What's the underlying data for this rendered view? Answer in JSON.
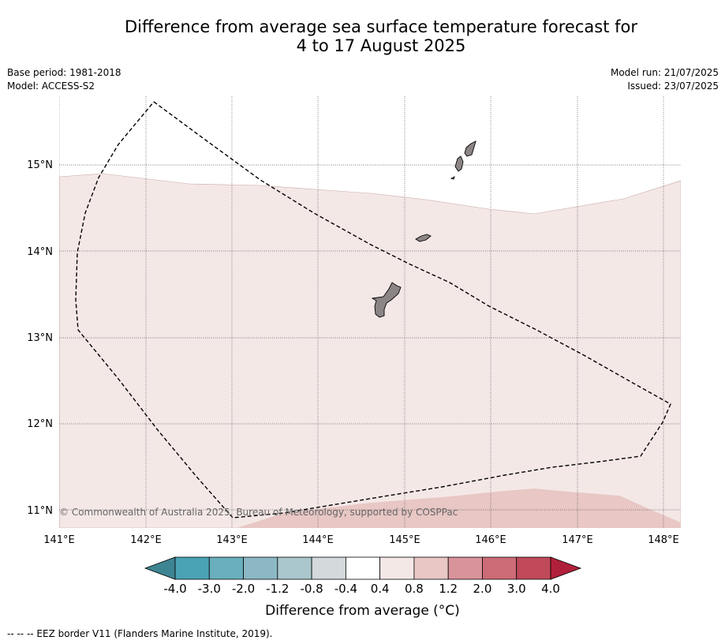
{
  "title": {
    "line1": "Difference from average sea surface temperature forecast for",
    "line2": "4 to 17 August 2025"
  },
  "info": {
    "base_period": "Base period: 1981-2018",
    "model": "Model: ACCESS-S2",
    "model_run": "Model run: 21/07/2025",
    "issued": "Issued: 23/07/2025"
  },
  "map": {
    "lon_labels": [
      "141°E",
      "142°E",
      "143°E",
      "144°E",
      "145°E",
      "146°E",
      "147°E",
      "148°E"
    ],
    "lat_labels": [
      "15°N",
      "14°N",
      "13°N",
      "12°N",
      "11°N"
    ],
    "copyright": "© Commonwealth of Australia 2025, Bureau of Meteorology, supported by COSPPac",
    "fill_colors": {
      "anomaly_0_4_to_0_8": "#f4e8e7",
      "anomaly_0_8_to_1_2": "#e8c7c4",
      "land": "#8c8585"
    }
  },
  "colorbar": {
    "ticks": [
      "-4.0",
      "-3.0",
      "-2.0",
      "-1.2",
      "-0.8",
      "-0.4",
      "0.4",
      "0.8",
      "1.2",
      "2.0",
      "3.0",
      "4.0"
    ],
    "colors": [
      "#4aa3b4",
      "#6aafbe",
      "#8bb8c4",
      "#a9c7cc",
      "#d4d9dc",
      "#ffffff",
      "#f4e8e7",
      "#e8c7c4",
      "#d9939b",
      "#cd6b76",
      "#c04a5a"
    ],
    "under_color": "#3e8593",
    "over_color": "#b1203a",
    "label": "Difference from average (°C)"
  },
  "footer": "-- -- -- EEZ border V11 (Flanders Marine Institute, 2019)."
}
